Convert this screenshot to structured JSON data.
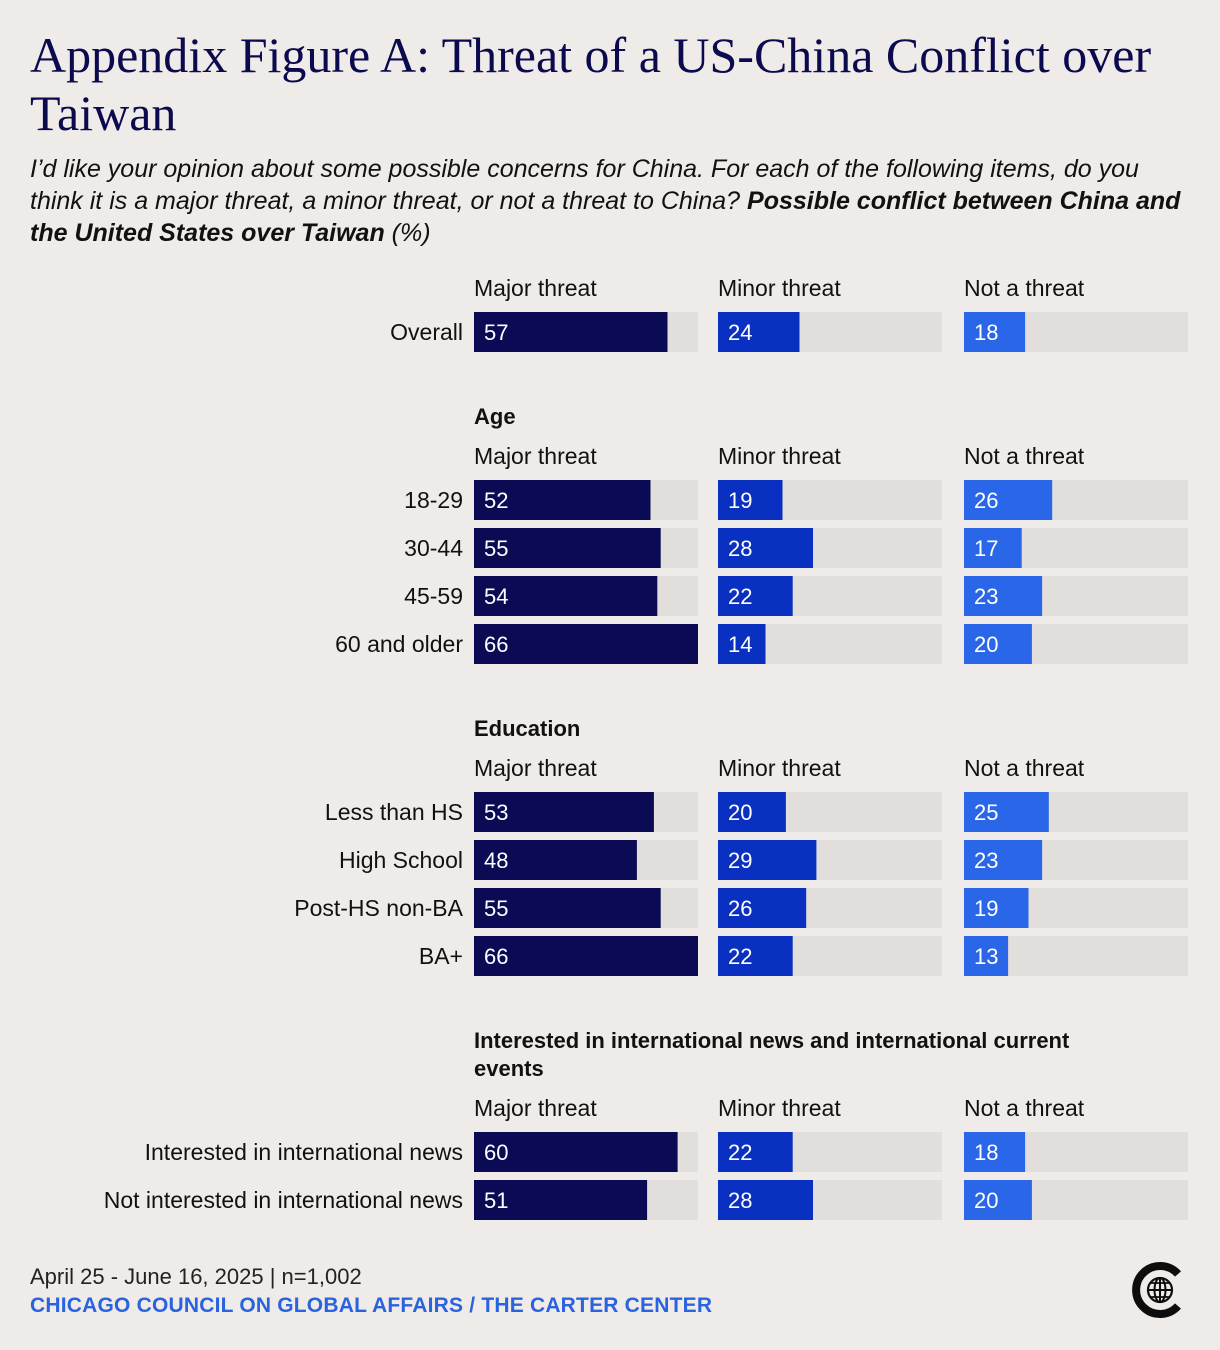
{
  "title": "Appendix Figure A: Threat of a US-China Conflict over Taiwan",
  "subtitle": {
    "italic": "I’d like your opinion about some possible concerns for China. For each of the following items, do you think it is a major threat, a minor threat, or not a threat to China?",
    "bold": "Possible conflict between China and the United States over Taiwan",
    "suffix": "(%)"
  },
  "footer": {
    "date": "April 25 - June 16, 2025 | n=1,002",
    "source": "CHICAGO COUNCIL ON GLOBAL AFFAIRS / THE CARTER CENTER"
  },
  "colors": {
    "background": "#efebe8",
    "track": "#e2dedb",
    "major_threat": "#0a0a55",
    "minor_threat": "#0a30c2",
    "not_a_threat": "#2a66e8",
    "title": "#0c0a4f",
    "source": "#2a63e0"
  },
  "logo_icon": "globe-logo-icon",
  "chart_data": {
    "type": "bar",
    "orientation": "horizontal",
    "xlim": [
      0,
      66
    ],
    "series_names": [
      "Major threat",
      "Minor threat",
      "Not a threat"
    ],
    "groups": [
      {
        "heading": "",
        "rows": [
          {
            "label": "Overall",
            "values": [
              57,
              24,
              18
            ]
          }
        ]
      },
      {
        "heading": "Age",
        "rows": [
          {
            "label": "18-29",
            "values": [
              52,
              19,
              26
            ]
          },
          {
            "label": "30-44",
            "values": [
              55,
              28,
              17
            ]
          },
          {
            "label": "45-59",
            "values": [
              54,
              22,
              23
            ]
          },
          {
            "label": "60 and older",
            "values": [
              66,
              14,
              20
            ]
          }
        ]
      },
      {
        "heading": "Education",
        "rows": [
          {
            "label": "Less than HS",
            "values": [
              53,
              20,
              25
            ]
          },
          {
            "label": "High School",
            "values": [
              48,
              29,
              23
            ]
          },
          {
            "label": "Post-HS non-BA",
            "values": [
              55,
              26,
              19
            ]
          },
          {
            "label": "BA+",
            "values": [
              66,
              22,
              13
            ]
          }
        ]
      },
      {
        "heading": "Interested in international news and international current events",
        "rows": [
          {
            "label": "Interested in international news",
            "values": [
              60,
              22,
              18
            ]
          },
          {
            "label": "Not interested in international news",
            "values": [
              51,
              28,
              20
            ]
          }
        ]
      }
    ]
  }
}
